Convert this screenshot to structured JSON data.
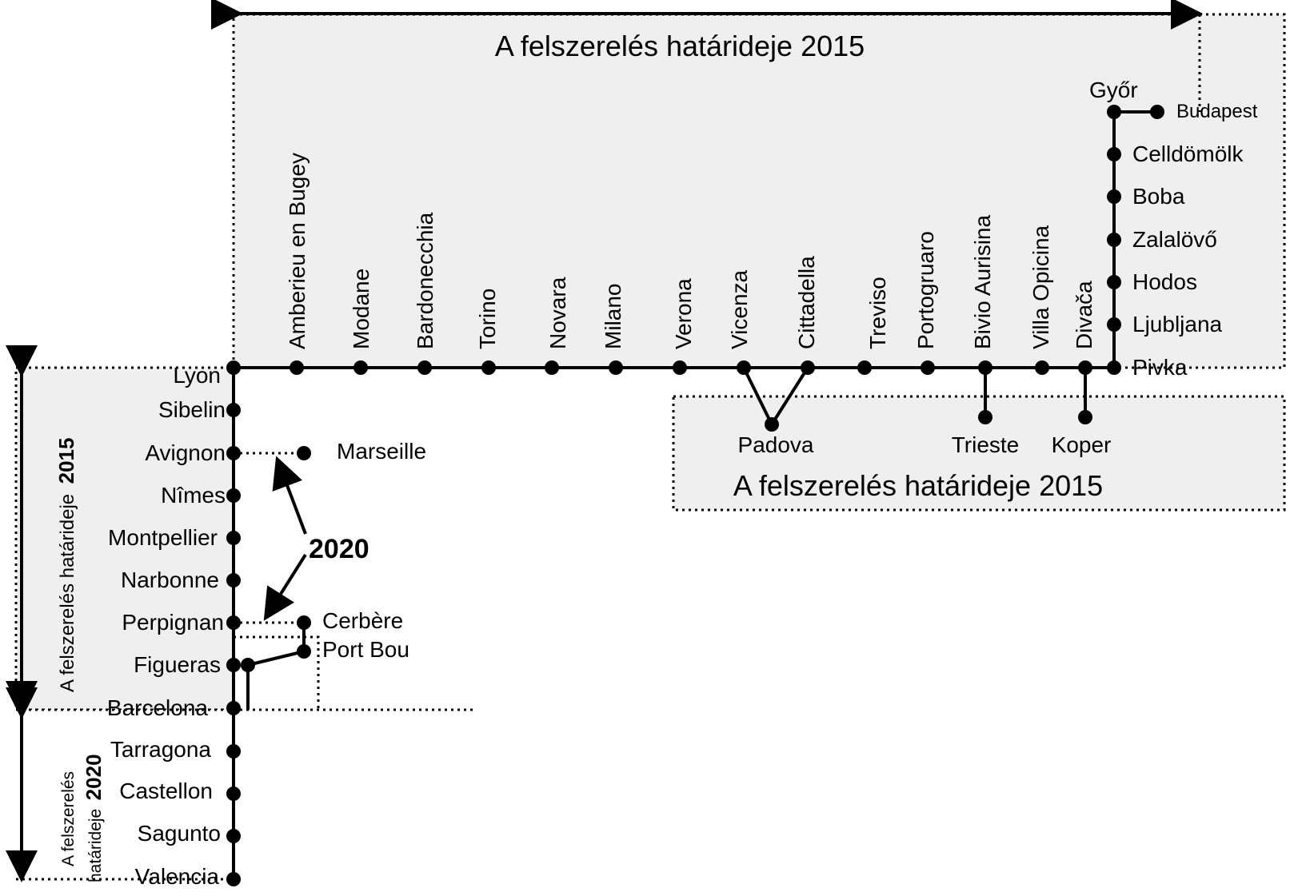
{
  "zones": {
    "top_title": "A felszerelés határideje 2015",
    "italy_title": "A felszerelés határideje 2015",
    "left_upper_label": "A felszerelés határideje",
    "left_upper_year": "2015",
    "left_lower_label_1": "A felszerelés",
    "left_lower_label_2": "határideje",
    "left_lower_year": "2020",
    "marker_2020": "2020"
  },
  "stations": {
    "top": [
      "Amberieu en Bugey",
      "Modane",
      "Bardonecchia",
      "Torino",
      "Novara",
      "Milano",
      "Verona",
      "Vicenza",
      "Cittadella",
      "Treviso",
      "Portogruaro",
      "Bivio Aurisina",
      "Villa Opicina",
      "Divača"
    ],
    "branches": [
      "Padova",
      "Trieste",
      "Koper"
    ],
    "hungary": [
      "Győr",
      "Budapest",
      "Celldömölk",
      "Boba",
      "Zalalövő",
      "Hodos",
      "Ljubljana",
      "Pivka"
    ],
    "france_spain": [
      "Lyon",
      "Sibelin",
      "Avignon",
      "Nîmes",
      "Montpellier",
      "Narbonne",
      "Perpignan",
      "Figueras",
      "Barcelona",
      "Tarragona",
      "Castellon",
      "Sagunto",
      "Valencia"
    ],
    "side": [
      "Marseille",
      "Cerbère",
      "Port Bou"
    ]
  }
}
